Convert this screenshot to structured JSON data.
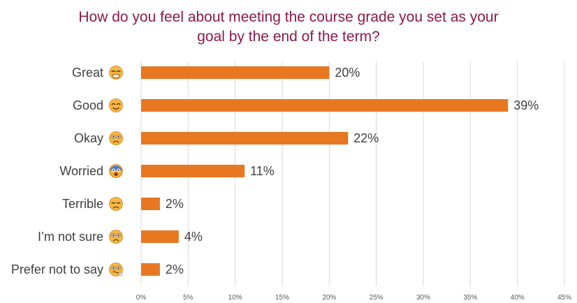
{
  "chart_data": {
    "type": "bar",
    "orientation": "horizontal",
    "title_lines": [
      "How do you feel about meeting the course grade you set as your",
      "goal by the end of the term?"
    ],
    "categories": [
      "Great",
      "Good",
      "Okay",
      "Worried",
      "Terrible",
      "I’m not sure",
      "Prefer not to say"
    ],
    "category_icons": [
      "grinning-face-icon",
      "smiling-face-icon",
      "worried-face-icon",
      "fearful-face-icon",
      "pensive-face-icon",
      "confused-face-icon",
      "woozy-face-icon"
    ],
    "values": [
      20,
      39,
      22,
      11,
      2,
      4,
      2
    ],
    "value_labels": [
      "20%",
      "39%",
      "22%",
      "11%",
      "2%",
      "4%",
      "2%"
    ],
    "x_ticks": [
      "0%",
      "5%",
      "10%",
      "15%",
      "20%",
      "25%",
      "30%",
      "35%",
      "40%",
      "45%"
    ],
    "xlim": [
      0,
      45
    ],
    "grid": "vertical",
    "bar_color": "#e87722",
    "title_color": "#8b1a4a"
  }
}
